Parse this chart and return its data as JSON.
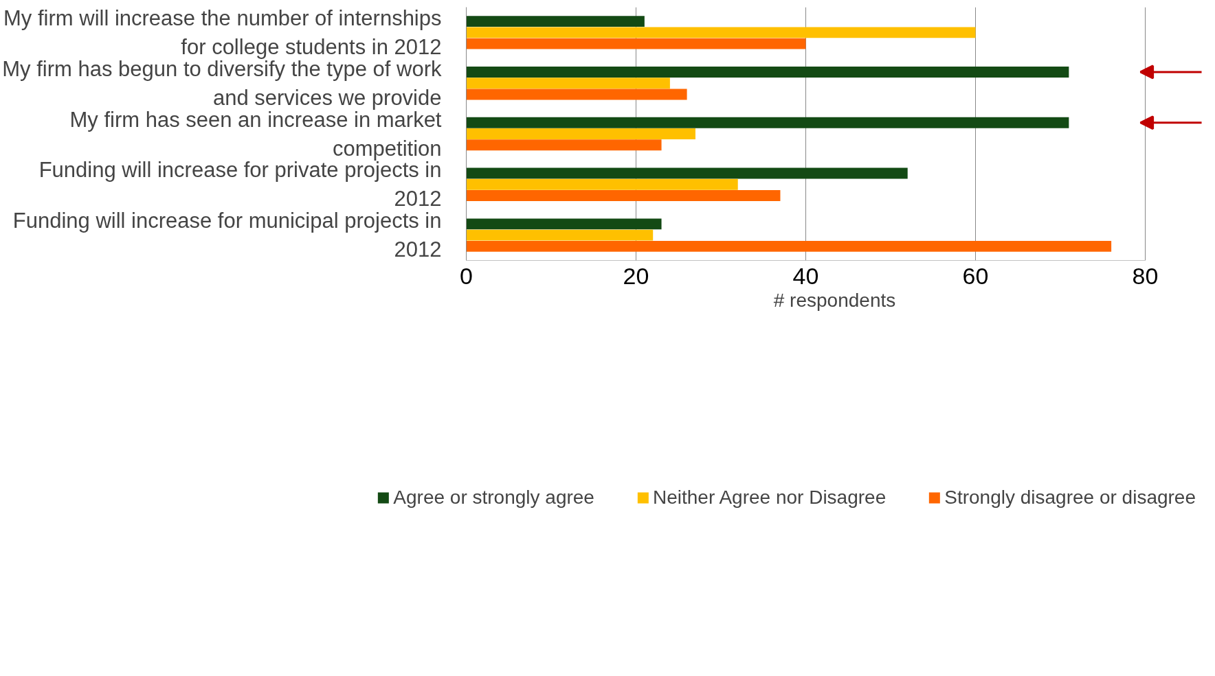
{
  "chart_data": {
    "type": "bar",
    "orientation": "horizontal",
    "categories": [
      "My firm will increase the number of internships for college students in 2012",
      "My firm has begun to diversify the type of work and services we provide",
      "My firm has seen an increase in market competition",
      "Funding will increase for private projects in 2012",
      "Funding will increase for municipal projects in 2012"
    ],
    "series": [
      {
        "name": "Agree or strongly agree",
        "color": "#134a14",
        "values": [
          21,
          71,
          71,
          52,
          23
        ]
      },
      {
        "name": "Neither Agree nor Disagree",
        "color": "#ffc000",
        "values": [
          60,
          24,
          27,
          32,
          22
        ]
      },
      {
        "name": "Strongly disagree or disagree",
        "color": "#ff6600",
        "values": [
          40,
          26,
          23,
          37,
          76
        ]
      }
    ],
    "xlabel": "# respondents",
    "xlim": [
      0,
      80
    ],
    "xticks": [
      0,
      20,
      40,
      60,
      80
    ],
    "grid": "x",
    "legend": "bottom"
  }
}
